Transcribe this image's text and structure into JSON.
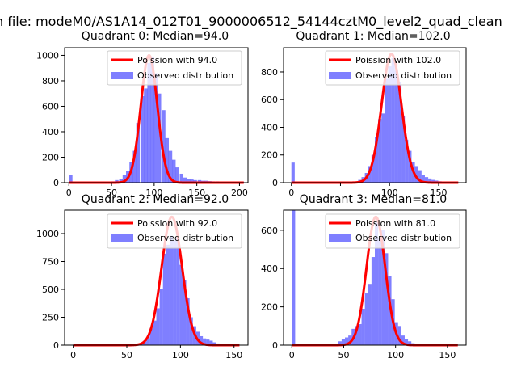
{
  "figure_title": "n file: modeM0/AS1A14_012T01_9000006512_54144cztM0_level2_quad_clean",
  "colors": {
    "poisson": "#ff0000",
    "observed": "#0000ff",
    "axes": "#000000"
  },
  "chart_data": [
    {
      "type": "bar",
      "title": "Quadrant 0: Median=94.0",
      "xlim": [
        -5,
        210
      ],
      "ylim": [
        0,
        1060
      ],
      "xticks": [
        0,
        50,
        100,
        150,
        200
      ],
      "yticks": [
        0,
        200,
        400,
        600,
        800,
        1000
      ],
      "legend": [
        "Poission with 94.0",
        "Observed distribution"
      ],
      "legend_position": "top-right",
      "poisson_mean": 94.0,
      "poisson_peak": 1000,
      "hist": {
        "bin_width": 4.18,
        "bins": [
          [
            0,
            60
          ],
          [
            4,
            8
          ],
          [
            8,
            8
          ],
          [
            13,
            8
          ],
          [
            17,
            8
          ],
          [
            21,
            8
          ],
          [
            25,
            8
          ],
          [
            29,
            8
          ],
          [
            33,
            8
          ],
          [
            38,
            8
          ],
          [
            42,
            8
          ],
          [
            46,
            8
          ],
          [
            50,
            10
          ],
          [
            54,
            20
          ],
          [
            59,
            30
          ],
          [
            63,
            60
          ],
          [
            67,
            90
          ],
          [
            71,
            160
          ],
          [
            75,
            250
          ],
          [
            79,
            470
          ],
          [
            84,
            680
          ],
          [
            88,
            740
          ],
          [
            92,
            940
          ],
          [
            96,
            990
          ],
          [
            100,
            860
          ],
          [
            104,
            700
          ],
          [
            109,
            570
          ],
          [
            113,
            350
          ],
          [
            117,
            250
          ],
          [
            121,
            180
          ],
          [
            125,
            120
          ],
          [
            130,
            70
          ],
          [
            134,
            40
          ],
          [
            138,
            30
          ],
          [
            142,
            25
          ],
          [
            146,
            20
          ],
          [
            151,
            20
          ],
          [
            155,
            15
          ],
          [
            159,
            15
          ],
          [
            163,
            12
          ],
          [
            167,
            10
          ],
          [
            172,
            10
          ],
          [
            176,
            8
          ],
          [
            180,
            8
          ],
          [
            184,
            8
          ],
          [
            188,
            8
          ],
          [
            193,
            8
          ],
          [
            197,
            8
          ],
          [
            201,
            8
          ]
        ]
      }
    },
    {
      "type": "bar",
      "title": "Quadrant 1: Median=102.0",
      "xlim": [
        -8,
        178
      ],
      "ylim": [
        0,
        975
      ],
      "xticks": [
        0,
        50,
        100,
        150
      ],
      "yticks": [
        0,
        200,
        400,
        600,
        800
      ],
      "xtick_labels": [
        "0",
        "",
        "100",
        "150"
      ],
      "legend": [
        "Poission with 102.0",
        "Observed distribution"
      ],
      "legend_position": "top-right",
      "poisson_mean": 102.0,
      "poisson_peak": 930,
      "hist": {
        "bin_width": 3.4,
        "bins": [
          [
            0,
            145
          ],
          [
            3.4,
            8
          ],
          [
            6.8,
            8
          ],
          [
            10.2,
            8
          ],
          [
            13.6,
            8
          ],
          [
            17,
            8
          ],
          [
            20.4,
            8
          ],
          [
            23.8,
            8
          ],
          [
            27.2,
            8
          ],
          [
            30.6,
            8
          ],
          [
            34,
            8
          ],
          [
            37.4,
            8
          ],
          [
            40.8,
            8
          ],
          [
            44.2,
            8
          ],
          [
            47.6,
            8
          ],
          [
            51,
            8
          ],
          [
            54.4,
            8
          ],
          [
            57.8,
            8
          ],
          [
            61.2,
            8
          ],
          [
            64.6,
            8
          ],
          [
            68,
            20
          ],
          [
            71.4,
            40
          ],
          [
            74.8,
            70
          ],
          [
            78.2,
            120
          ],
          [
            81.6,
            200
          ],
          [
            85,
            330
          ],
          [
            88.4,
            460
          ],
          [
            91.8,
            500
          ],
          [
            95.2,
            750
          ],
          [
            98.6,
            840
          ],
          [
            102,
            900
          ],
          [
            105.4,
            810
          ],
          [
            108.8,
            730
          ],
          [
            112.2,
            480
          ],
          [
            115.6,
            310
          ],
          [
            119,
            230
          ],
          [
            122.4,
            150
          ],
          [
            125.8,
            120
          ],
          [
            129.2,
            90
          ],
          [
            132.6,
            55
          ],
          [
            136,
            40
          ],
          [
            139.4,
            30
          ],
          [
            142.8,
            20
          ],
          [
            146.2,
            15
          ],
          [
            149.6,
            10
          ],
          [
            153,
            8
          ],
          [
            156.4,
            8
          ],
          [
            159.8,
            8
          ],
          [
            163.2,
            8
          ],
          [
            166.6,
            8
          ]
        ]
      }
    },
    {
      "type": "bar",
      "title": "Quadrant 2: Median=92.0",
      "xlim": [
        -8,
        163
      ],
      "ylim": [
        0,
        1210
      ],
      "xticks": [
        0,
        50,
        100,
        150
      ],
      "yticks": [
        0,
        250,
        500,
        750,
        1000
      ],
      "legend": [
        "Poission with 92.0",
        "Observed distribution"
      ],
      "legend_position": "top-right",
      "poisson_mean": 92.0,
      "poisson_peak": 1150,
      "hist": {
        "bin_width": 3.1,
        "bins": [
          [
            0,
            8
          ],
          [
            3.1,
            8
          ],
          [
            6.2,
            8
          ],
          [
            9.3,
            8
          ],
          [
            12.4,
            8
          ],
          [
            15.5,
            8
          ],
          [
            18.6,
            8
          ],
          [
            21.7,
            8
          ],
          [
            24.8,
            8
          ],
          [
            27.9,
            8
          ],
          [
            31,
            8
          ],
          [
            34.1,
            8
          ],
          [
            37.2,
            8
          ],
          [
            40.3,
            8
          ],
          [
            43.4,
            8
          ],
          [
            46.5,
            8
          ],
          [
            49.6,
            8
          ],
          [
            52.7,
            8
          ],
          [
            55.8,
            8
          ],
          [
            58.9,
            8
          ],
          [
            62,
            10
          ],
          [
            65.1,
            30
          ],
          [
            68.2,
            60
          ],
          [
            71.3,
            150
          ],
          [
            74.4,
            220
          ],
          [
            77.5,
            330
          ],
          [
            80.6,
            500
          ],
          [
            83.7,
            820
          ],
          [
            86.8,
            900
          ],
          [
            89.9,
            980
          ],
          [
            93,
            940
          ],
          [
            96.1,
            960
          ],
          [
            99.2,
            720
          ],
          [
            102.3,
            580
          ],
          [
            105.4,
            420
          ],
          [
            108.5,
            250
          ],
          [
            111.6,
            170
          ],
          [
            114.7,
            120
          ],
          [
            117.8,
            80
          ],
          [
            120.9,
            60
          ],
          [
            124,
            50
          ],
          [
            127.1,
            40
          ],
          [
            130.2,
            25
          ],
          [
            133.3,
            15
          ],
          [
            136.4,
            10
          ],
          [
            139.5,
            8
          ],
          [
            142.6,
            8
          ],
          [
            145.7,
            8
          ],
          [
            148.8,
            8
          ],
          [
            151.9,
            8
          ]
        ]
      }
    },
    {
      "type": "bar",
      "title": "Quadrant 3: Median=81.0",
      "xlim": [
        -8,
        168
      ],
      "ylim": [
        0,
        705
      ],
      "xticks": [
        0,
        50,
        100,
        150
      ],
      "yticks": [
        0,
        200,
        400,
        600
      ],
      "legend": [
        "Poission with 81.0",
        "Observed distribution"
      ],
      "legend_position": "top-right",
      "poisson_mean": 81.0,
      "poisson_peak": 670,
      "hist": {
        "bin_width": 3.2,
        "bins": [
          [
            0,
            705
          ],
          [
            3.2,
            8
          ],
          [
            6.4,
            8
          ],
          [
            9.6,
            8
          ],
          [
            12.8,
            8
          ],
          [
            16,
            8
          ],
          [
            19.2,
            8
          ],
          [
            22.4,
            8
          ],
          [
            25.6,
            8
          ],
          [
            28.8,
            8
          ],
          [
            32,
            8
          ],
          [
            35.2,
            8
          ],
          [
            38.4,
            8
          ],
          [
            41.6,
            8
          ],
          [
            44.8,
            20
          ],
          [
            48,
            30
          ],
          [
            51.2,
            40
          ],
          [
            54.4,
            50
          ],
          [
            57.6,
            85
          ],
          [
            60.8,
            100
          ],
          [
            64,
            110
          ],
          [
            67.2,
            190
          ],
          [
            70.4,
            270
          ],
          [
            73.6,
            320
          ],
          [
            76.8,
            460
          ],
          [
            80,
            640
          ],
          [
            83.2,
            560
          ],
          [
            86.4,
            600
          ],
          [
            89.6,
            480
          ],
          [
            92.8,
            360
          ],
          [
            96,
            240
          ],
          [
            99.2,
            120
          ],
          [
            102.4,
            100
          ],
          [
            105.6,
            50
          ],
          [
            108.8,
            30
          ],
          [
            112,
            20
          ],
          [
            115.2,
            10
          ],
          [
            118.4,
            8
          ],
          [
            121.6,
            8
          ],
          [
            124.8,
            8
          ],
          [
            128,
            8
          ],
          [
            131.2,
            8
          ],
          [
            134.4,
            8
          ],
          [
            137.6,
            8
          ],
          [
            140.8,
            8
          ],
          [
            144,
            8
          ],
          [
            147.2,
            8
          ],
          [
            150.4,
            8
          ],
          [
            153.6,
            8
          ],
          [
            156.8,
            8
          ]
        ]
      }
    }
  ]
}
